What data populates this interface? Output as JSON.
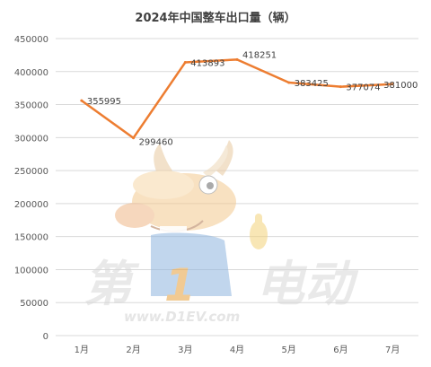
{
  "chart_data": {
    "type": "line",
    "title": "2024年中国整车出口量（辆）",
    "xlabel": "",
    "ylabel": "",
    "categories": [
      "1月",
      "2月",
      "3月",
      "4月",
      "5月",
      "6月",
      "7月"
    ],
    "values": [
      355995,
      299460,
      413893,
      418251,
      383425,
      377074,
      381000
    ],
    "data_labels": [
      "355995",
      "299460",
      "413893",
      "418251",
      "383425",
      "377074",
      "381000"
    ],
    "ylim": [
      0,
      450000
    ],
    "yticks": [
      0,
      50000,
      100000,
      150000,
      200000,
      250000,
      300000,
      350000,
      400000,
      450000
    ],
    "ytick_labels": [
      "0",
      "50000",
      "100000",
      "150000",
      "200000",
      "250000",
      "300000",
      "350000",
      "400000",
      "450000"
    ],
    "grid": true,
    "legend": "none",
    "colors": {
      "line": "#ED7D31",
      "grid": "#D9D9D9",
      "text": "#595959"
    }
  },
  "watermark": {
    "logo_text_1": "第",
    "logo_text_2": "1",
    "logo_text_3": "电动",
    "url": "www.D1EV.com",
    "icon": "reindeer-mascot-icon"
  }
}
